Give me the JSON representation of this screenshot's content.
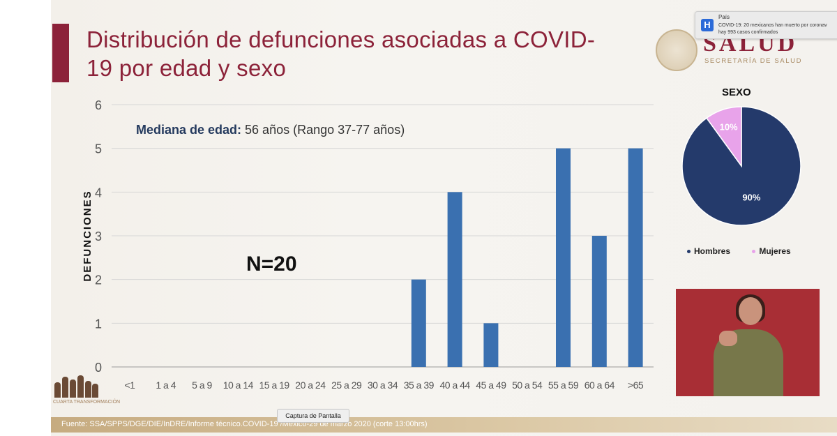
{
  "title": "Distribución de defunciones asociadas a COVID-19 por edad y sexo",
  "logo": {
    "name": "SALUD",
    "subtitle": "SECRETARÍA DE SALUD"
  },
  "notification": {
    "icon": "H",
    "source": "País",
    "message_line1": "COVID-19: 20 mexicanos han muerto por coronav",
    "message_line2": "hay 993 casos confirmados"
  },
  "median_label": "Mediana de edad:",
  "median_value": " 56 años (Rango 37-77 años)",
  "n_label": "N=20",
  "chart_data": [
    {
      "type": "bar",
      "title": "",
      "xlabel": "",
      "ylabel": "DEFUNCIONES",
      "ylim": [
        0,
        6
      ],
      "yticks": [
        0,
        1,
        2,
        3,
        4,
        5,
        6
      ],
      "grid": true,
      "color": "#3a70b0",
      "categories": [
        "<1",
        "1 a 4",
        "5 a 9",
        "10 a 14",
        "15 a 19",
        "20 a 24",
        "25 a 29",
        "30 a 34",
        "35 a 39",
        "40 a 44",
        "45 a 49",
        "50 a 54",
        "55 a 59",
        "60 a 64",
        ">65"
      ],
      "values": [
        0,
        0,
        0,
        0,
        0,
        0,
        0,
        0,
        2,
        4,
        1,
        0,
        5,
        3,
        5
      ]
    },
    {
      "type": "pie",
      "title": "SEXO",
      "labels": [
        "Hombres",
        "Mujeres"
      ],
      "values": [
        90,
        10
      ],
      "value_labels": [
        "90%",
        "10%"
      ],
      "colors": [
        "#243a6b",
        "#e8a3ea"
      ],
      "legend": "bottom"
    }
  ],
  "interpreter_alt": "Intérprete de lengua de señas",
  "caption_button": "Captura de Pantalla",
  "footer": "Fuente: SSA/SPPS/DGE/DIE/InDRE/Informe técnico.COVID-19 /México-29 de marzo 2020 (corte 13:00hrs)",
  "corner_logo_text": "CUARTA TRANSFORMACIÓN"
}
